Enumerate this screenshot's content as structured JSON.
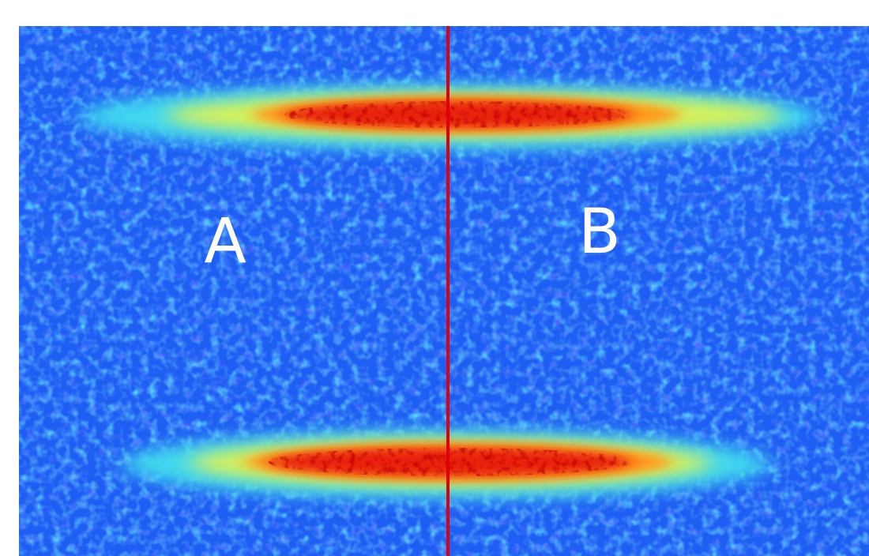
{
  "labels": [
    "A",
    "B"
  ]
}
